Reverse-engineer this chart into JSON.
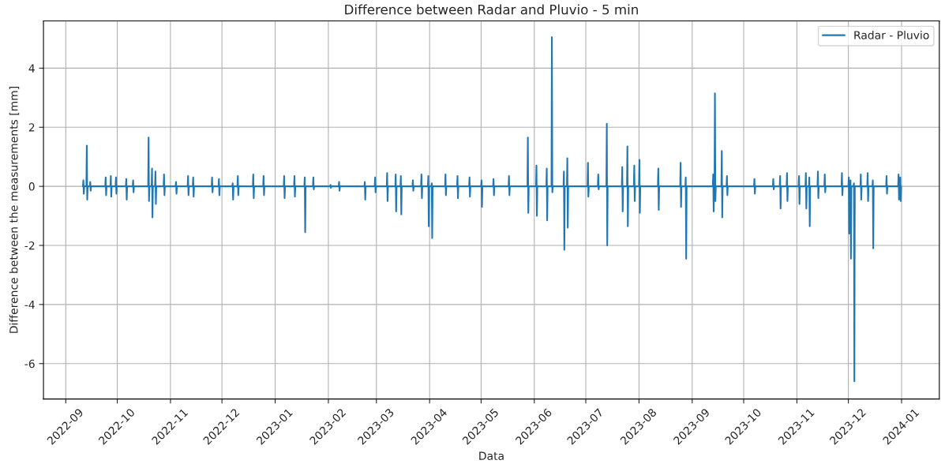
{
  "chart_data": {
    "type": "line",
    "title": "Difference between Radar and Pluvio - 5 min",
    "xlabel": "Data",
    "ylabel": "Difference between the measurements [mm]",
    "xlim": [
      "2022-08-19",
      "2024-01-23"
    ],
    "ylim": [
      -7.2,
      5.6
    ],
    "xticks": [
      "2022-09",
      "2022-10",
      "2022-11",
      "2022-12",
      "2023-01",
      "2023-02",
      "2023-03",
      "2023-04",
      "2023-05",
      "2023-06",
      "2023-07",
      "2023-08",
      "2023-09",
      "2023-10",
      "2023-11",
      "2023-12",
      "2024-01"
    ],
    "yticks": [
      -6,
      -4,
      -2,
      0,
      2,
      4
    ],
    "grid": true,
    "legend": "top right",
    "line_style": "solid",
    "series": [
      {
        "name": "Radar - Pluvio",
        "color": "#1f77b4",
        "x": [
          "2022-09-11T00:00",
          "2022-09-11T06:00",
          "2022-09-11T12:00",
          "2022-09-11T18:00",
          "2022-09-13T00:00",
          "2022-09-13T06:00",
          "2022-09-13T12:00",
          "2022-09-13T18:00",
          "2022-09-15T00:00",
          "2022-09-15T06:00",
          "2022-09-15T12:00",
          "2022-09-15T18:00",
          "2022-09-24T00:00",
          "2022-09-24T06:00",
          "2022-09-24T12:00",
          "2022-09-24T18:00",
          "2022-09-27T00:00",
          "2022-09-27T06:00",
          "2022-09-27T12:00",
          "2022-09-27T18:00",
          "2022-09-30T00:00",
          "2022-09-30T06:00",
          "2022-09-30T12:00",
          "2022-09-30T18:00",
          "2022-10-06T00:00",
          "2022-10-06T06:00",
          "2022-10-06T12:00",
          "2022-10-06T18:00",
          "2022-10-10T00:00",
          "2022-10-10T06:00",
          "2022-10-10T12:00",
          "2022-10-10T18:00",
          "2022-10-19T00:00",
          "2022-10-19T06:00",
          "2022-10-19T12:00",
          "2022-10-19T18:00",
          "2022-10-21T00:00",
          "2022-10-21T06:00",
          "2022-10-21T12:00",
          "2022-10-21T18:00",
          "2022-10-23T00:00",
          "2022-10-23T06:00",
          "2022-10-23T12:00",
          "2022-10-23T18:00",
          "2022-10-28T00:00",
          "2022-10-28T06:00",
          "2022-10-28T12:00",
          "2022-10-28T18:00",
          "2022-11-04T00:00",
          "2022-11-04T06:00",
          "2022-11-04T12:00",
          "2022-11-04T18:00",
          "2022-11-11T00:00",
          "2022-11-11T06:00",
          "2022-11-11T12:00",
          "2022-11-11T18:00",
          "2022-11-14T00:00",
          "2022-11-14T06:00",
          "2022-11-14T12:00",
          "2022-11-14T18:00",
          "2022-11-25T00:00",
          "2022-11-25T06:00",
          "2022-11-25T12:00",
          "2022-11-25T18:00",
          "2022-11-29T00:00",
          "2022-11-29T06:00",
          "2022-11-29T12:00",
          "2022-11-29T18:00",
          "2022-12-07T00:00",
          "2022-12-07T06:00",
          "2022-12-07T12:00",
          "2022-12-07T18:00",
          "2022-12-10T00:00",
          "2022-12-10T06:00",
          "2022-12-10T12:00",
          "2022-12-10T18:00",
          "2022-12-19T00:00",
          "2022-12-19T06:00",
          "2022-12-19T12:00",
          "2022-12-19T18:00",
          "2022-12-25T00:00",
          "2022-12-25T06:00",
          "2022-12-25T12:00",
          "2022-12-25T18:00",
          "2023-01-06T00:00",
          "2023-01-06T06:00",
          "2023-01-06T12:00",
          "2023-01-06T18:00",
          "2023-01-12T00:00",
          "2023-01-12T06:00",
          "2023-01-12T12:00",
          "2023-01-12T18:00",
          "2023-01-18T00:00",
          "2023-01-18T06:00",
          "2023-01-18T12:00",
          "2023-01-18T18:00",
          "2023-01-23T00:00",
          "2023-01-23T06:00",
          "2023-01-23T12:00",
          "2023-01-23T18:00",
          "2023-02-02T00:00",
          "2023-02-02T06:00",
          "2023-02-02T12:00",
          "2023-02-02T18:00",
          "2023-02-07T00:00",
          "2023-02-07T06:00",
          "2023-02-07T12:00",
          "2023-02-07T18:00",
          "2023-02-22T00:00",
          "2023-02-22T06:00",
          "2023-02-22T12:00",
          "2023-02-22T18:00",
          "2023-02-28T00:00",
          "2023-02-28T06:00",
          "2023-02-28T12:00",
          "2023-02-28T18:00",
          "2023-03-07T00:00",
          "2023-03-07T06:00",
          "2023-03-07T12:00",
          "2023-03-07T18:00",
          "2023-03-12T00:00",
          "2023-03-12T06:00",
          "2023-03-12T12:00",
          "2023-03-12T18:00",
          "2023-03-15T00:00",
          "2023-03-15T06:00",
          "2023-03-15T12:00",
          "2023-03-15T18:00",
          "2023-03-22T00:00",
          "2023-03-22T06:00",
          "2023-03-22T12:00",
          "2023-03-22T18:00",
          "2023-03-27T00:00",
          "2023-03-27T06:00",
          "2023-03-27T12:00",
          "2023-03-27T18:00",
          "2023-03-31T00:00",
          "2023-03-31T06:00",
          "2023-03-31T12:00",
          "2023-03-31T18:00",
          "2023-04-02T00:00",
          "2023-04-02T06:00",
          "2023-04-02T12:00",
          "2023-04-02T18:00",
          "2023-04-10T00:00",
          "2023-04-10T06:00",
          "2023-04-10T12:00",
          "2023-04-10T18:00",
          "2023-04-17T00:00",
          "2023-04-17T06:00",
          "2023-04-17T12:00",
          "2023-04-17T18:00",
          "2023-04-24T00:00",
          "2023-04-24T06:00",
          "2023-04-24T12:00",
          "2023-04-24T18:00",
          "2023-05-01T00:00",
          "2023-05-01T06:00",
          "2023-05-01T12:00",
          "2023-05-01T18:00",
          "2023-05-08T00:00",
          "2023-05-08T06:00",
          "2023-05-08T12:00",
          "2023-05-08T18:00",
          "2023-05-17T00:00",
          "2023-05-17T06:00",
          "2023-05-17T12:00",
          "2023-05-17T18:00",
          "2023-05-28T00:00",
          "2023-05-28T06:00",
          "2023-05-28T12:00",
          "2023-05-28T18:00",
          "2023-06-02T00:00",
          "2023-06-02T06:00",
          "2023-06-02T12:00",
          "2023-06-02T18:00",
          "2023-06-08T00:00",
          "2023-06-08T06:00",
          "2023-06-08T12:00",
          "2023-06-08T18:00",
          "2023-06-11T00:00",
          "2023-06-11T06:00",
          "2023-06-11T12:00",
          "2023-06-11T18:00",
          "2023-06-18T00:00",
          "2023-06-18T06:00",
          "2023-06-18T12:00",
          "2023-06-18T18:00",
          "2023-06-20T00:00",
          "2023-06-20T06:00",
          "2023-06-20T12:00",
          "2023-06-20T18:00",
          "2023-07-02T00:00",
          "2023-07-02T06:00",
          "2023-07-02T12:00",
          "2023-07-02T18:00",
          "2023-07-08T00:00",
          "2023-07-08T06:00",
          "2023-07-08T12:00",
          "2023-07-08T18:00",
          "2023-07-13T00:00",
          "2023-07-13T06:00",
          "2023-07-13T12:00",
          "2023-07-13T18:00",
          "2023-07-22T00:00",
          "2023-07-22T06:00",
          "2023-07-22T12:00",
          "2023-07-22T18:00",
          "2023-07-25T00:00",
          "2023-07-25T06:00",
          "2023-07-25T12:00",
          "2023-07-25T18:00",
          "2023-07-29T00:00",
          "2023-07-29T06:00",
          "2023-07-29T12:00",
          "2023-07-29T18:00",
          "2023-08-01T00:00",
          "2023-08-01T06:00",
          "2023-08-01T12:00",
          "2023-08-01T18:00",
          "2023-08-12T00:00",
          "2023-08-12T06:00",
          "2023-08-12T12:00",
          "2023-08-12T18:00",
          "2023-08-25T00:00",
          "2023-08-25T06:00",
          "2023-08-25T12:00",
          "2023-08-25T18:00",
          "2023-08-28T00:00",
          "2023-08-28T06:00",
          "2023-08-28T12:00",
          "2023-08-28T18:00",
          "2023-09-13T00:00",
          "2023-09-13T06:00",
          "2023-09-13T12:00",
          "2023-09-13T18:00",
          "2023-09-14T00:00",
          "2023-09-14T06:00",
          "2023-09-14T12:00",
          "2023-09-14T18:00",
          "2023-09-18T00:00",
          "2023-09-18T06:00",
          "2023-09-18T12:00",
          "2023-09-18T18:00",
          "2023-09-21T00:00",
          "2023-09-21T06:00",
          "2023-09-21T12:00",
          "2023-09-21T18:00",
          "2023-10-07T00:00",
          "2023-10-07T06:00",
          "2023-10-07T12:00",
          "2023-10-07T18:00",
          "2023-10-18T00:00",
          "2023-10-18T06:00",
          "2023-10-18T12:00",
          "2023-10-18T18:00",
          "2023-10-22T00:00",
          "2023-10-22T06:00",
          "2023-10-22T12:00",
          "2023-10-22T18:00",
          "2023-10-26T00:00",
          "2023-10-26T06:00",
          "2023-10-26T12:00",
          "2023-10-26T18:00",
          "2023-11-02T00:00",
          "2023-11-02T06:00",
          "2023-11-02T12:00",
          "2023-11-02T18:00",
          "2023-11-06T00:00",
          "2023-11-06T06:00",
          "2023-11-06T12:00",
          "2023-11-06T18:00",
          "2023-11-08T00:00",
          "2023-11-08T06:00",
          "2023-11-08T12:00",
          "2023-11-08T18:00",
          "2023-11-13T00:00",
          "2023-11-13T06:00",
          "2023-11-13T12:00",
          "2023-11-13T18:00",
          "2023-11-17T00:00",
          "2023-11-17T06:00",
          "2023-11-17T12:00",
          "2023-11-17T18:00",
          "2023-11-27T00:00",
          "2023-11-27T06:00",
          "2023-11-27T12:00",
          "2023-11-27T18:00",
          "2023-12-01T00:00",
          "2023-12-01T06:00",
          "2023-12-01T12:00",
          "2023-12-01T18:00",
          "2023-12-02T00:00",
          "2023-12-02T06:00",
          "2023-12-02T12:00",
          "2023-12-02T18:00",
          "2023-12-04T00:00",
          "2023-12-04T06:00",
          "2023-12-04T12:00",
          "2023-12-04T18:00",
          "2023-12-08T00:00",
          "2023-12-08T06:00",
          "2023-12-08T12:00",
          "2023-12-08T18:00",
          "2023-12-12T00:00",
          "2023-12-12T06:00",
          "2023-12-12T12:00",
          "2023-12-12T18:00",
          "2023-12-15T00:00",
          "2023-12-15T06:00",
          "2023-12-15T12:00",
          "2023-12-15T18:00",
          "2023-12-23T00:00",
          "2023-12-23T06:00",
          "2023-12-23T12:00",
          "2023-12-23T18:00",
          "2023-12-30T00:00",
          "2023-12-30T06:00",
          "2023-12-30T12:00",
          "2023-12-30T18:00",
          "2023-12-31T00:00",
          "2023-12-31T06:00",
          "2023-12-31T12:00",
          "2023-12-31T18:00"
        ],
        "values": [
          0,
          0.2,
          -0.25,
          0,
          0,
          1.38,
          -0.45,
          0,
          0,
          0.15,
          -0.15,
          0,
          0,
          0.3,
          -0.3,
          0,
          0,
          0.35,
          -0.35,
          0,
          0,
          0.3,
          -0.25,
          0,
          0,
          0.25,
          -0.45,
          0,
          0,
          0.2,
          -0.2,
          0,
          0,
          1.65,
          -0.5,
          0,
          0,
          0.6,
          -1.05,
          0,
          0,
          0.5,
          -0.6,
          0,
          0,
          0.4,
          -0.3,
          0,
          0,
          0.15,
          -0.25,
          0,
          0,
          0.35,
          -0.3,
          0,
          0,
          0.3,
          -0.35,
          0,
          0,
          0.3,
          -0.2,
          0,
          0,
          0.25,
          -0.3,
          0,
          0,
          0.1,
          -0.45,
          0,
          0,
          0.35,
          -0.3,
          0,
          0,
          0.4,
          -0.4,
          0,
          0,
          0.35,
          -0.3,
          0,
          0,
          0.35,
          -0.4,
          0,
          0,
          0.35,
          -0.35,
          0,
          0,
          0.3,
          -1.55,
          0,
          0,
          0.3,
          -0.1,
          0,
          0,
          0.05,
          -0.05,
          0,
          0,
          0.15,
          -0.15,
          0,
          0,
          0.15,
          -0.45,
          0,
          0,
          0.3,
          -0.2,
          0,
          0,
          0.45,
          -0.5,
          0,
          0,
          0.4,
          -0.85,
          0,
          0,
          0.35,
          -0.95,
          0,
          0,
          0.2,
          -0.15,
          0,
          0,
          0.4,
          -0.4,
          0,
          0,
          0.35,
          -1.35,
          0,
          0,
          0.1,
          -1.75,
          0,
          0,
          0.4,
          -0.3,
          0,
          0,
          0.35,
          -0.4,
          0,
          0,
          0.3,
          -0.35,
          0,
          0,
          0.2,
          -0.7,
          0,
          0,
          0.25,
          -0.3,
          0,
          0,
          0.35,
          -0.3,
          0,
          0,
          1.65,
          -0.9,
          0,
          0,
          0.7,
          -1.0,
          0,
          0,
          0.6,
          -1.15,
          0,
          0,
          5.05,
          -0.2,
          0,
          0,
          0.5,
          -2.15,
          0,
          0,
          0.95,
          -1.4,
          0,
          0,
          0.8,
          -0.35,
          0,
          0,
          0.4,
          -0.1,
          0,
          0,
          2.12,
          -2.0,
          0,
          0,
          0.65,
          -0.85,
          0,
          0,
          1.35,
          -1.35,
          0,
          0,
          0.7,
          -0.5,
          0,
          0,
          0.9,
          -0.9,
          0,
          0,
          0.6,
          -0.8,
          0,
          0,
          0.8,
          -0.7,
          0,
          0,
          0.3,
          -2.45,
          0,
          0,
          0.4,
          -0.85,
          0,
          0,
          3.15,
          -0.5,
          0,
          0,
          1.2,
          -1.05,
          0,
          0,
          0.35,
          -0.3,
          0,
          0,
          0.25,
          -0.25,
          0,
          0,
          0.25,
          -0.1,
          0,
          0,
          0.35,
          -0.75,
          0,
          0,
          0.45,
          -0.5,
          0,
          0,
          0.35,
          -0.6,
          0,
          0,
          0.45,
          -0.75,
          0,
          0,
          0.3,
          -1.35,
          0,
          0,
          0.5,
          -0.4,
          0,
          0,
          0.4,
          -0.2,
          0,
          0,
          0.45,
          -0.3,
          0,
          0,
          0.3,
          -1.6,
          0,
          0,
          0.2,
          -2.45,
          0,
          0,
          0.1,
          -6.6,
          0,
          0,
          0.4,
          -0.45,
          0,
          0,
          0.45,
          -0.5,
          0,
          0,
          0.2,
          -2.1,
          0,
          0,
          0.35,
          -0.25,
          0,
          0,
          0.4,
          -0.45,
          0,
          0,
          0.3,
          -0.5,
          0
        ]
      }
    ]
  }
}
